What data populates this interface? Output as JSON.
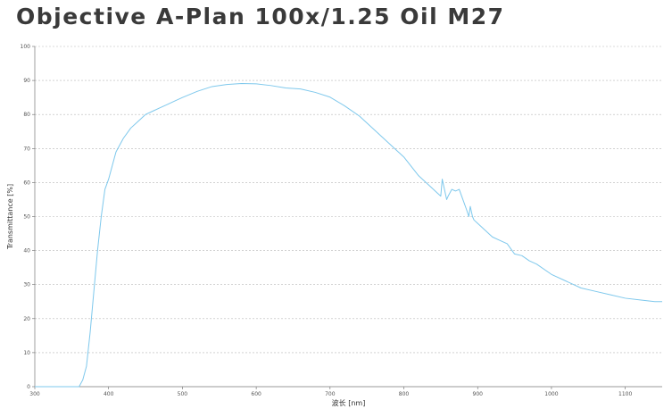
{
  "chart_data": {
    "type": "line",
    "title": "Objective A-Plan 100x/1.25 Oil M27",
    "xlabel": "波长 [nm]",
    "ylabel": "Transmittance [%]",
    "xlim": [
      300,
      1150
    ],
    "ylim": [
      0,
      100
    ],
    "x_ticks": [
      "300",
      "400",
      "500",
      "600",
      "700",
      "800",
      "900",
      "1000",
      "1100"
    ],
    "y_ticks": [
      "0",
      "10",
      "20",
      "30",
      "40",
      "50",
      "60",
      "70",
      "80",
      "90",
      "100"
    ],
    "grid": true,
    "line_color": "#7ec8ec",
    "series": [
      {
        "x": [
          300,
          340,
          360,
          365,
          370,
          375,
          380,
          385,
          390,
          395,
          400,
          405,
          410,
          420,
          430,
          440,
          450,
          460,
          470,
          480,
          490,
          500,
          520,
          540,
          560,
          580,
          600,
          620,
          640,
          660,
          680,
          700,
          720,
          740,
          760,
          780,
          800,
          820,
          840,
          845,
          850,
          852,
          855,
          858,
          860,
          865,
          870,
          875,
          880,
          885,
          888,
          890,
          893,
          895,
          900,
          910,
          920,
          930,
          940,
          950,
          960,
          970,
          980,
          1000,
          1020,
          1040,
          1060,
          1080,
          1100,
          1120,
          1140,
          1150
        ],
        "y": [
          0,
          0,
          0,
          2,
          6,
          16,
          28,
          40,
          50,
          58,
          61,
          65,
          69,
          73,
          76,
          78,
          80,
          81,
          82,
          83,
          84,
          85,
          86.8,
          88.2,
          88.8,
          89.1,
          89,
          88.5,
          87.8,
          87.5,
          86.5,
          85.1,
          82.5,
          79.5,
          75.5,
          71.5,
          67.5,
          62,
          58,
          57,
          56,
          61,
          58,
          55,
          56,
          58,
          57.5,
          58,
          55,
          52,
          50,
          53,
          50,
          49,
          48,
          46,
          44,
          43,
          42,
          39,
          38.5,
          37,
          36,
          33,
          31,
          29,
          28,
          27,
          26,
          25.5,
          25,
          25
        ]
      }
    ]
  }
}
